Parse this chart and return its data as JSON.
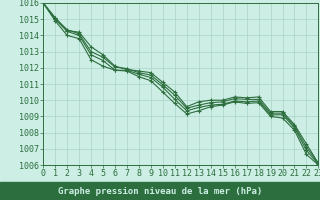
{
  "title": "Graphe pression niveau de la mer (hPa)",
  "background_color": "#cceee4",
  "grid_color": "#aad4c8",
  "line_color": "#2d6e3e",
  "label_bg_color": "#2d6e3e",
  "label_text_color": "#cceee4",
  "xlim": [
    0,
    23
  ],
  "ylim": [
    1006,
    1016
  ],
  "xticks": [
    0,
    1,
    2,
    3,
    4,
    5,
    6,
    7,
    8,
    9,
    10,
    11,
    12,
    13,
    14,
    15,
    16,
    17,
    18,
    19,
    20,
    21,
    22,
    23
  ],
  "yticks": [
    1006,
    1007,
    1008,
    1009,
    1010,
    1011,
    1012,
    1013,
    1014,
    1015,
    1016
  ],
  "series": [
    [
      1016,
      1015.1,
      1014.3,
      1014.2,
      1013.3,
      1012.8,
      1012.1,
      1011.9,
      1011.8,
      1011.7,
      1011.1,
      1010.5,
      1009.6,
      1009.9,
      1010.0,
      1010.0,
      1010.2,
      1010.15,
      1010.2,
      1009.3,
      1009.3,
      1008.5,
      1007.3,
      1006.1
    ],
    [
      1016,
      1015.05,
      1014.35,
      1014.1,
      1013.0,
      1012.65,
      1012.05,
      1011.95,
      1011.7,
      1011.55,
      1010.95,
      1010.3,
      1009.5,
      1009.7,
      1009.85,
      1009.9,
      1010.1,
      1010.05,
      1010.05,
      1009.2,
      1009.2,
      1008.4,
      1007.1,
      1006.1
    ],
    [
      1016,
      1015.0,
      1014.25,
      1014.0,
      1012.8,
      1012.45,
      1011.85,
      1011.85,
      1011.6,
      1011.4,
      1010.8,
      1010.05,
      1009.35,
      1009.55,
      1009.7,
      1009.75,
      1009.95,
      1009.9,
      1009.95,
      1009.1,
      1009.1,
      1008.3,
      1006.9,
      1006.05
    ],
    [
      1016,
      1014.9,
      1014.0,
      1013.8,
      1012.5,
      1012.1,
      1011.85,
      1011.8,
      1011.45,
      1011.2,
      1010.5,
      1009.8,
      1009.15,
      1009.35,
      1009.6,
      1009.7,
      1009.9,
      1009.8,
      1009.85,
      1009.0,
      1008.9,
      1008.15,
      1006.65,
      1006.0
    ]
  ],
  "marker": "+",
  "markersize": 3.5,
  "linewidth": 0.8,
  "font_size_ticks": 6,
  "font_size_label": 6.5
}
